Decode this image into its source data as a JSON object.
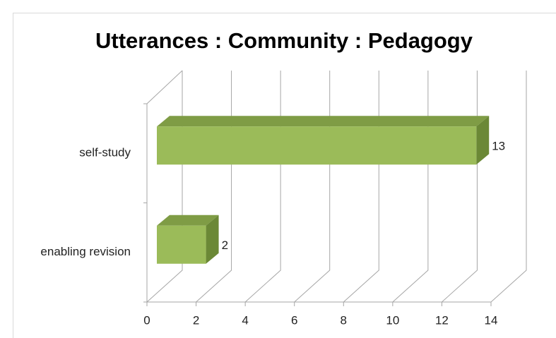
{
  "chart_data": {
    "type": "bar3d",
    "orientation": "horizontal",
    "title": "Utterances : Community : Pedagogy",
    "categories": [
      "enabling revision",
      "self-study"
    ],
    "values": [
      2,
      13
    ],
    "color": "#9bbb59",
    "xlim": [
      0,
      14
    ],
    "xticks": [
      0,
      2,
      4,
      6,
      8,
      10,
      12,
      14
    ],
    "grid": true
  }
}
